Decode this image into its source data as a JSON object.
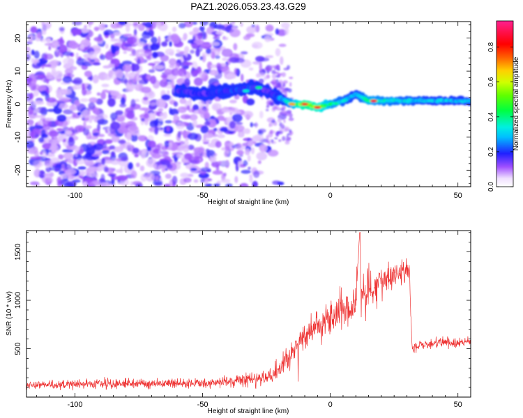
{
  "chart_data": [
    {
      "type": "heatmap",
      "title": "PAZ1.2026.053.23.43.G29",
      "xlabel": "Height of straight line (km)",
      "ylabel": "Frequency (Hz)",
      "xlim": [
        -119,
        55
      ],
      "ylim": [
        -25,
        25
      ],
      "x_ticks": [
        -100,
        -50,
        0,
        50
      ],
      "y_ticks": [
        -20,
        -10,
        0,
        10,
        20
      ],
      "colorbar": {
        "label": "Normalized spectral amplitude",
        "range": [
          0,
          0.95
        ],
        "ticks": [
          0.0,
          0.2,
          0.4,
          0.6,
          0.8
        ]
      },
      "signal_track": {
        "x": [
          -60,
          -50,
          -40,
          -30,
          -25,
          -20,
          -15,
          -10,
          -5,
          0,
          5,
          10,
          15,
          20,
          30,
          40,
          55
        ],
        "frequency": [
          4,
          3,
          4,
          5,
          4,
          2,
          0,
          0,
          -1,
          0,
          1,
          3,
          1,
          1,
          1,
          1,
          1
        ],
        "amplitude": [
          0.28,
          0.25,
          0.3,
          0.3,
          0.25,
          0.35,
          0.6,
          0.85,
          0.8,
          0.6,
          0.5,
          0.45,
          0.6,
          0.55,
          0.5,
          0.45,
          0.45
        ]
      }
    },
    {
      "type": "line",
      "xlabel": "Height of straight line (km)",
      "ylabel": "SNR (10 * v/v)",
      "xlim": [
        -119,
        55
      ],
      "ylim": [
        0,
        1720
      ],
      "x_ticks": [
        -100,
        -50,
        0,
        50
      ],
      "y_ticks": [
        500,
        1000,
        1500
      ],
      "series": [
        {
          "name": "SNR",
          "color": "#ee3333",
          "x": [
            -119,
            -100,
            -80,
            -60,
            -40,
            -30,
            -25,
            -20,
            -15,
            -10,
            -5,
            0,
            5,
            10,
            11.5,
            12,
            15,
            20,
            25,
            30,
            31,
            32,
            40,
            50,
            55
          ],
          "values": [
            120,
            130,
            140,
            140,
            160,
            190,
            200,
            280,
            460,
            620,
            730,
            810,
            900,
            990,
            1700,
            1020,
            1120,
            1180,
            1240,
            1320,
            1310,
            510,
            560,
            570,
            570
          ],
          "noise": [
            40,
            50,
            50,
            50,
            60,
            70,
            80,
            100,
            130,
            150,
            150,
            170,
            190,
            220,
            0,
            230,
            200,
            180,
            150,
            120,
            120,
            60,
            50,
            50,
            50
          ]
        }
      ]
    }
  ]
}
